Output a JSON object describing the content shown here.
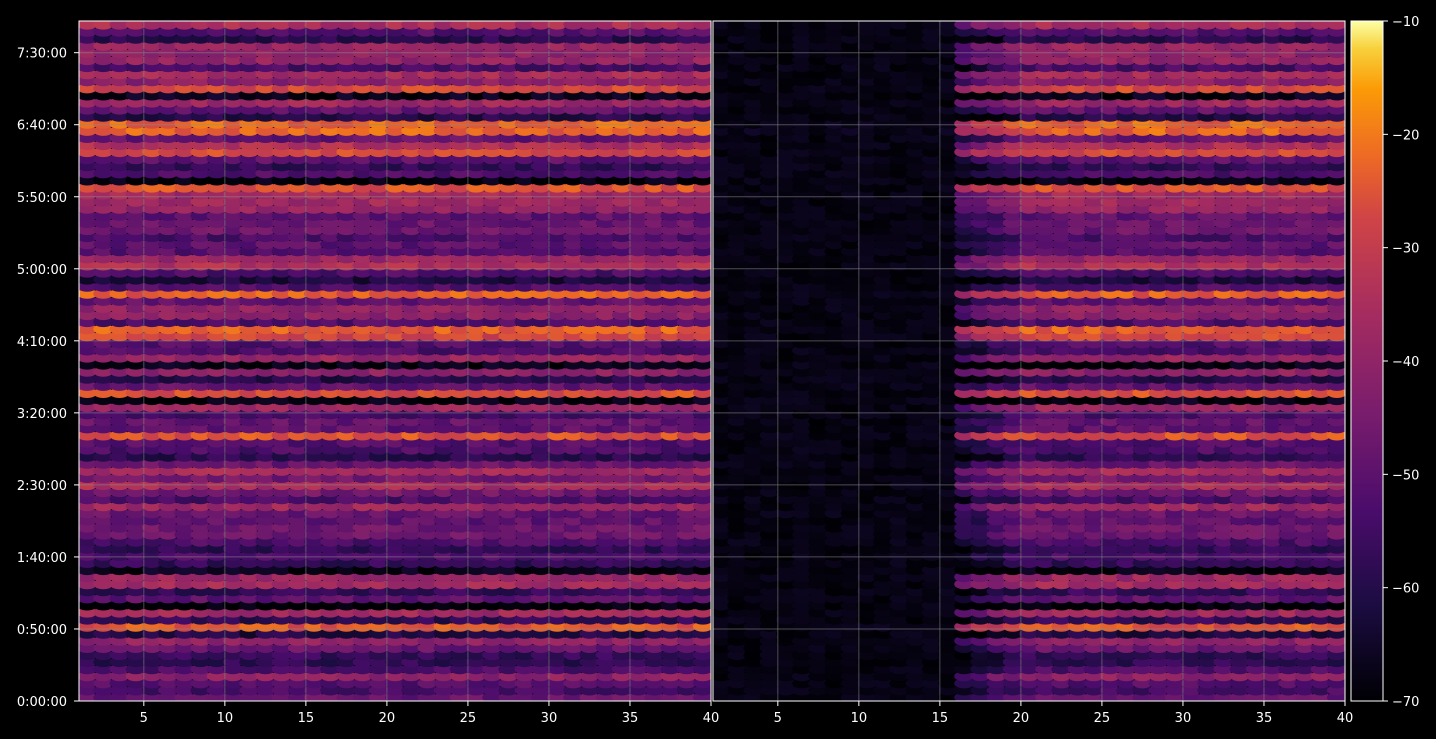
{
  "colors": {
    "background": "#000000",
    "text": "#ffffff",
    "grid": "#8a8a8a",
    "colormap": "inferno"
  },
  "chart_data": {
    "type": "heatmap",
    "title": "",
    "grid": true,
    "legend": "colorbar-right",
    "ylim_seconds": [
      0,
      28320
    ],
    "y_ticks": [
      {
        "value": 0,
        "label": "0:00:00"
      },
      {
        "value": 3000,
        "label": "0:50:00"
      },
      {
        "value": 6000,
        "label": "1:40:00"
      },
      {
        "value": 9000,
        "label": "2:30:00"
      },
      {
        "value": 12000,
        "label": "3:20:00"
      },
      {
        "value": 15000,
        "label": "4:10:00"
      },
      {
        "value": 18000,
        "label": "5:00:00"
      },
      {
        "value": 21000,
        "label": "5:50:00"
      },
      {
        "value": 24000,
        "label": "6:40:00"
      },
      {
        "value": 27000,
        "label": "7:30:00"
      }
    ],
    "panels": [
      {
        "name": "left",
        "xlim": [
          1,
          40
        ],
        "x_ticks": [
          5,
          10,
          15,
          20,
          25,
          30,
          35,
          40
        ],
        "description": "bright throughout: orange/red/purple bands, horizontal striping"
      },
      {
        "name": "right",
        "xlim": [
          1,
          40
        ],
        "x_ticks": [
          5,
          10,
          15,
          20,
          25,
          30,
          35,
          40
        ],
        "description": "dark (near -70) for x < ~16, similar banded pattern for x > ~16"
      }
    ],
    "colorbar": {
      "range": [
        -70,
        -10
      ],
      "ticks": [
        "−10",
        "−20",
        "−30",
        "−40",
        "−50",
        "−60",
        "−70"
      ]
    }
  }
}
